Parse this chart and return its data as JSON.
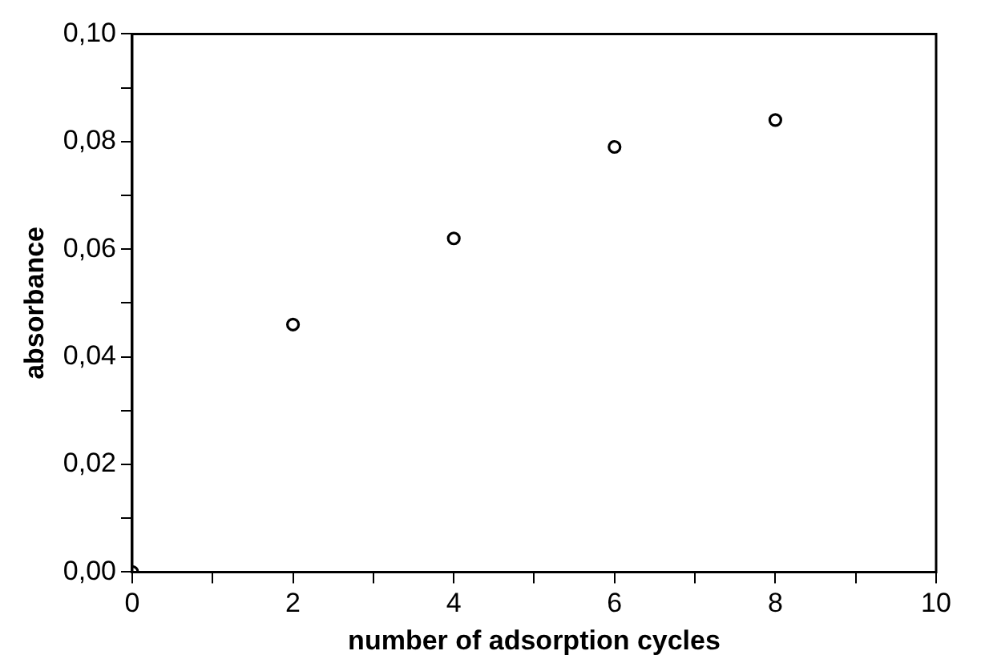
{
  "chart_data": {
    "type": "scatter",
    "xlabel": "number of adsorption cycles",
    "ylabel": "absorbance",
    "x": [
      0,
      2,
      4,
      6,
      8
    ],
    "series": [
      {
        "color": "#000000",
        "values": [
          0,
          0.046,
          0.062,
          0.079,
          0.084
        ]
      }
    ],
    "xlim": [
      0,
      10
    ],
    "ylim": [
      0,
      0.1
    ],
    "xticks": [
      0,
      {
        "value": 1,
        "label": null
      },
      2,
      {
        "value": 3,
        "label": null
      },
      4,
      {
        "value": 5,
        "label": null
      },
      6,
      {
        "value": 7,
        "label": null
      },
      8,
      {
        "value": 9,
        "label": null
      },
      10
    ],
    "yticks": [
      {
        "value": 0,
        "label": "0,00"
      },
      {
        "value": 0.01,
        "label": null
      },
      {
        "value": 0.02,
        "label": "0,02"
      },
      {
        "value": 0.03,
        "label": null
      },
      {
        "value": 0.04,
        "label": "0,04"
      },
      {
        "value": 0.05,
        "label": null
      },
      {
        "value": 0.06,
        "label": "0,06"
      },
      {
        "value": 0.07,
        "label": null
      },
      {
        "value": 0.08,
        "label": "0,08"
      },
      {
        "value": 0.09,
        "label": null
      },
      {
        "value": 0.1,
        "label": "0,10"
      }
    ],
    "grid": false,
    "legend": false,
    "marker": "circle"
  }
}
